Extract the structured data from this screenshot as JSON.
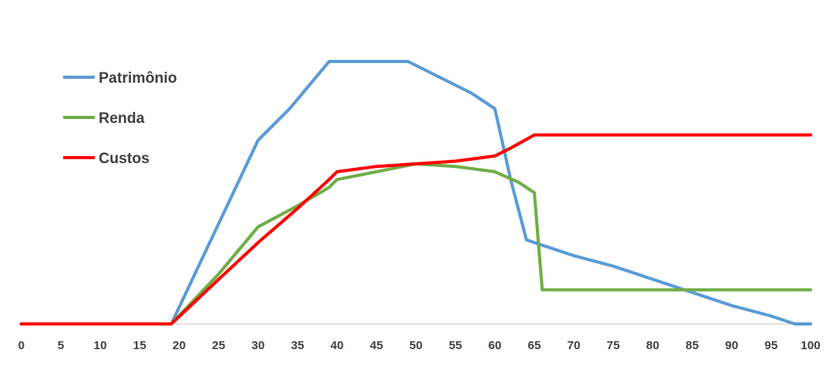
{
  "chart_data": {
    "type": "line",
    "title": "",
    "xlabel": "",
    "ylabel": "",
    "xlim": [
      0,
      100
    ],
    "ylim": [
      0,
      100
    ],
    "x_ticks": [
      "0",
      "5",
      "10",
      "15",
      "20",
      "25",
      "30",
      "35",
      "40",
      "45",
      "50",
      "55",
      "60",
      "65",
      "70",
      "75",
      "80",
      "85",
      "90",
      "95",
      "100"
    ],
    "grid": false,
    "y_axis_visible": false,
    "legend_position": "top-left",
    "series": [
      {
        "name": "Patrimônio",
        "color": "#5b9bd5",
        "points": [
          [
            0,
            0
          ],
          [
            19,
            0
          ],
          [
            30,
            70
          ],
          [
            34,
            82
          ],
          [
            39,
            100
          ],
          [
            49,
            100
          ],
          [
            53,
            94
          ],
          [
            57,
            88
          ],
          [
            60,
            82
          ],
          [
            62,
            55
          ],
          [
            64,
            32
          ],
          [
            65,
            31
          ],
          [
            70,
            26
          ],
          [
            75,
            22
          ],
          [
            80,
            17
          ],
          [
            85,
            12
          ],
          [
            90,
            7
          ],
          [
            95,
            3
          ],
          [
            98,
            0
          ],
          [
            100,
            0
          ]
        ]
      },
      {
        "name": "Renda",
        "color": "#70ad47",
        "points": [
          [
            0,
            0
          ],
          [
            19,
            0
          ],
          [
            25,
            19
          ],
          [
            30,
            37
          ],
          [
            35,
            45
          ],
          [
            39,
            52
          ],
          [
            40,
            55
          ],
          [
            45,
            58
          ],
          [
            50,
            61
          ],
          [
            55,
            60
          ],
          [
            60,
            58
          ],
          [
            63,
            54
          ],
          [
            65,
            50
          ],
          [
            66,
            13
          ],
          [
            70,
            13
          ],
          [
            100,
            13
          ]
        ]
      },
      {
        "name": "Custos",
        "color": "#ff0000",
        "points": [
          [
            0,
            0
          ],
          [
            19,
            0
          ],
          [
            25,
            17
          ],
          [
            30,
            31
          ],
          [
            35,
            44
          ],
          [
            39,
            55
          ],
          [
            40,
            58
          ],
          [
            45,
            60
          ],
          [
            50,
            61
          ],
          [
            55,
            62
          ],
          [
            60,
            64
          ],
          [
            62,
            67
          ],
          [
            65,
            72
          ],
          [
            100,
            72
          ]
        ]
      }
    ]
  }
}
